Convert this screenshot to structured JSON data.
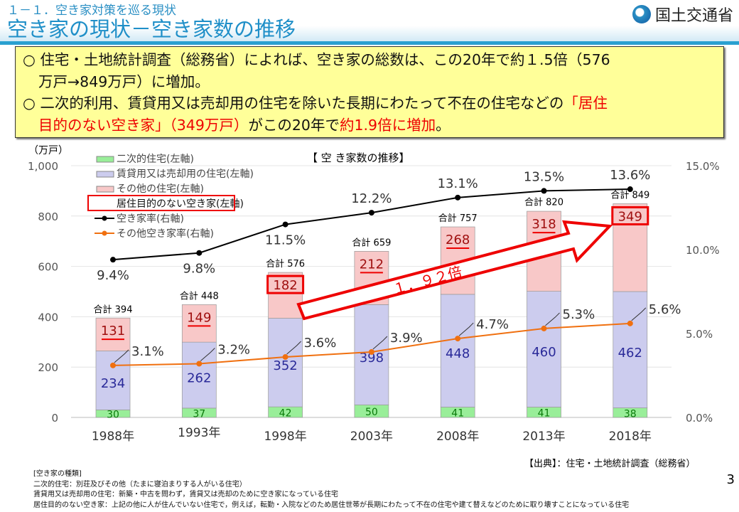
{
  "header": {
    "section": "１－１．空き家対策を巡る現状",
    "title": "空き家の現状－空き家数の推移",
    "logo": "国土交通省"
  },
  "summary": {
    "line1a": "○ 住宅・土地統計調査（総務省）によれば、空き家の総数は、この20年で約１.5倍（576",
    "line1b": "万戸→849万戸）に増加。",
    "line2a": "○ 二次的利用、賃貸用又は売却用の住宅を除いた長期にわたって不在の住宅などの",
    "line2a_red": "「居住",
    "line2b_red": "目的のない空き家」（349万戸）",
    "line2b": "がこの20年で",
    "line2b_red2": "約1.9倍に増加",
    "line2b_end": "。"
  },
  "chart_data": {
    "type": "bar+line",
    "title": "【 空 き家数の推移】",
    "ylabel": "（万戸）",
    "ylim": [
      0,
      1000
    ],
    "y2lim": [
      0,
      15
    ],
    "yticks": [
      "0",
      "200",
      "400",
      "600",
      "800",
      "1,000"
    ],
    "y2ticks": [
      "0.0%",
      "5.0%",
      "10.0%",
      "15.0%"
    ],
    "categories": [
      "1988年",
      "1993年",
      "1998年",
      "2003年",
      "2008年",
      "2013年",
      "2018年"
    ],
    "stacked_series": [
      {
        "name": "二次的住宅(左軸)",
        "color": "#99ee99",
        "label_color": "#0a7a0a",
        "values": [
          30,
          37,
          42,
          50,
          41,
          41,
          38
        ]
      },
      {
        "name": "賃貸用又は売却用の住宅(左軸)",
        "color": "#ccccee",
        "label_color": "#2a2a99",
        "values": [
          234,
          262,
          352,
          398,
          448,
          460,
          462
        ]
      },
      {
        "name": "その他の住宅(左軸)",
        "overlay_name": "居住目的のない空き家(左軸)",
        "color": "#f8c8c8",
        "label_color": "#a01010",
        "values": [
          131,
          149,
          182,
          212,
          268,
          318,
          349
        ]
      }
    ],
    "totals_label": "合計",
    "totals": [
      394,
      448,
      576,
      659,
      757,
      820,
      849
    ],
    "line_series": [
      {
        "name": "空き家率(右軸)",
        "color": "#000000",
        "values": [
          9.4,
          9.8,
          11.5,
          12.2,
          13.1,
          13.5,
          13.6
        ],
        "labels": [
          "9.4%",
          "9.8%",
          "11.5%",
          "12.2%",
          "13.1%",
          "13.5%",
          "13.6%"
        ]
      },
      {
        "name": "その他空き家率(右軸)",
        "color": "#f07010",
        "values": [
          3.1,
          3.2,
          3.6,
          3.9,
          4.7,
          5.3,
          5.6
        ],
        "labels": [
          "3.1%",
          "3.2%",
          "3.6%",
          "3.9%",
          "4.7%",
          "5.3%",
          "5.6%"
        ]
      }
    ],
    "annotation": "１．９２倍",
    "legend_position": "top-left"
  },
  "source": "【出典】：住宅・土地統計調査（総務省）",
  "notes": [
    "[空き家の種類]",
    "二次的住宅：別荘及びその他（たまに寝泊まりする人がいる住宅）",
    "賃貸用又は売却用の住宅：新築・中古を問わず，賃貸又は売却のために空き家になっている住宅",
    "居住目的のない空き家：上記の他に人が住んでいない住宅で，例えば，転勤・入院などのため居住世帯が長期にわたって不在の住宅や建て替えなどのために取り壊すことになっている住宅"
  ],
  "page": "3"
}
